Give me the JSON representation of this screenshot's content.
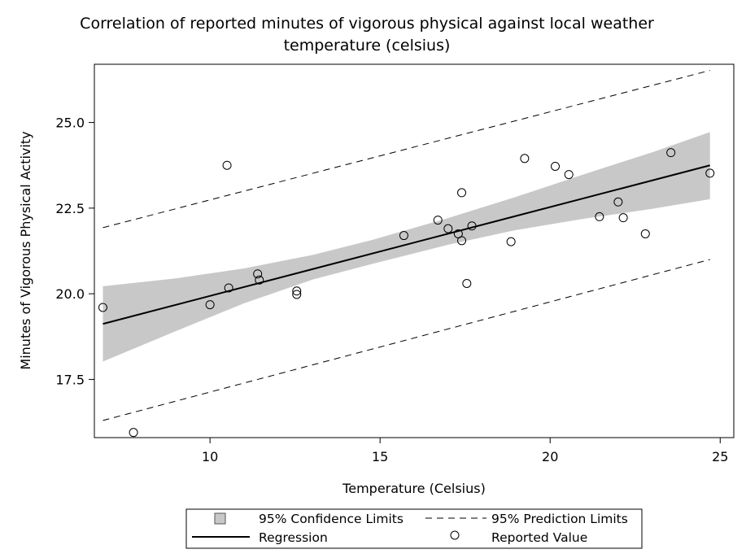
{
  "chart_data": {
    "type": "scatter",
    "title_lines": [
      "Correlation of reported minutes of vigorous physical against local weather",
      "temperature (celsius)"
    ],
    "xlabel": "Temperature (Celsius)",
    "ylabel": "Minutes of Vigorous Physical Activity",
    "xlim": [
      6.6,
      25.4
    ],
    "ylim": [
      15.8,
      26.7
    ],
    "xticks": [
      10,
      15,
      20,
      25
    ],
    "xtick_labels": [
      "10",
      "15",
      "20",
      "25"
    ],
    "yticks": [
      17.5,
      20.0,
      22.5,
      25.0
    ],
    "ytick_labels": [
      "17.5",
      "20.0",
      "22.5",
      "25.0"
    ],
    "grid": false,
    "regression": {
      "x": [
        6.85,
        24.7
      ],
      "y": [
        19.12,
        23.75
      ]
    },
    "confidence_band": {
      "x": [
        6.85,
        9,
        11,
        13,
        14.8,
        17,
        19,
        21,
        23,
        24.7
      ],
      "lower": [
        18.02,
        18.91,
        19.72,
        20.41,
        20.88,
        21.43,
        21.86,
        22.19,
        22.48,
        22.76
      ],
      "upper": [
        20.22,
        20.45,
        20.74,
        21.13,
        21.58,
        22.21,
        22.83,
        23.49,
        24.13,
        24.72
      ]
    },
    "prediction_limits": {
      "x": [
        6.85,
        24.7
      ],
      "lower": [
        16.3,
        21.0
      ],
      "upper": [
        21.93,
        26.52
      ]
    },
    "points": {
      "x": [
        6.85,
        7.75,
        10.0,
        10.5,
        10.55,
        11.4,
        11.45,
        12.55,
        12.55,
        15.7,
        16.7,
        17.0,
        17.3,
        17.4,
        17.4,
        17.55,
        17.7,
        18.85,
        19.25,
        20.15,
        20.55,
        21.45,
        22.0,
        22.15,
        22.8,
        23.55,
        24.7
      ],
      "y": [
        19.6,
        15.95,
        19.68,
        23.75,
        20.17,
        20.58,
        20.4,
        20.08,
        19.98,
        21.7,
        22.15,
        21.9,
        21.75,
        22.95,
        21.55,
        20.3,
        21.98,
        21.52,
        23.95,
        23.72,
        23.48,
        22.25,
        22.68,
        22.22,
        21.75,
        24.12,
        23.52
      ]
    },
    "legend": {
      "placement": "bottom",
      "entries": [
        {
          "label": "95% Confidence Limits",
          "symbol": "band"
        },
        {
          "label": "95% Prediction Limits",
          "symbol": "dashed"
        },
        {
          "label": "Regression",
          "symbol": "line"
        },
        {
          "label": "Reported Value",
          "symbol": "circle"
        }
      ]
    },
    "colors": {
      "band": "#c8c8c8",
      "line": "#000000",
      "background": "#ffffff"
    }
  }
}
